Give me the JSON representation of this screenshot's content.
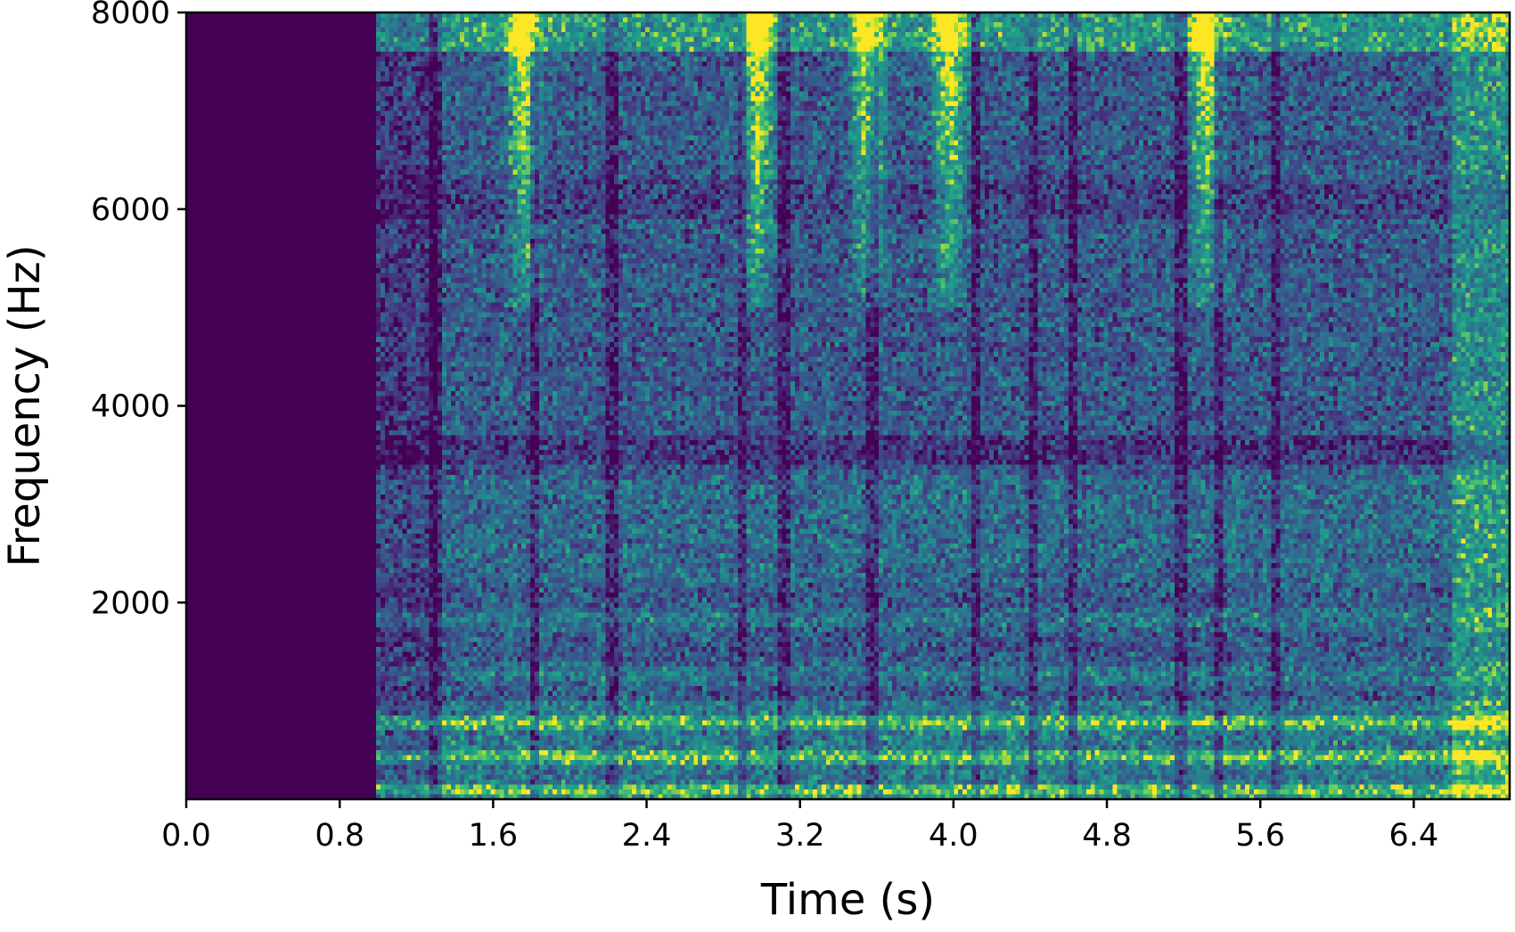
{
  "chart_data": {
    "type": "heatmap",
    "title": "",
    "xlabel": "Time (s)",
    "ylabel": "Frequency (Hz)",
    "xlim": [
      0,
      6.9
    ],
    "ylim": [
      0,
      8000
    ],
    "xticks": [
      0.0,
      0.8,
      1.6,
      2.4,
      3.2,
      4.0,
      4.8,
      5.6,
      6.4
    ],
    "xtick_labels": [
      "0.0",
      "0.8",
      "1.6",
      "2.4",
      "3.2",
      "4.0",
      "4.8",
      "5.6",
      "6.4"
    ],
    "yticks": [
      2000,
      4000,
      6000,
      8000
    ],
    "ytick_labels": [
      "2000",
      "4000",
      "6000",
      "8000"
    ],
    "colormap": "viridis",
    "colors": {
      "low": "#440154",
      "mid": "#21918c",
      "high": "#fde725"
    },
    "grid": false,
    "silence_until_s": 1.0,
    "onsets_s": [
      1.3,
      1.82,
      2.22,
      2.9,
      3.12,
      3.58,
      4.12,
      4.42,
      4.62,
      5.18,
      5.38,
      5.68
    ],
    "bright_columns_s": [
      1.76,
      2.98,
      3.56,
      3.98,
      5.32
    ]
  }
}
